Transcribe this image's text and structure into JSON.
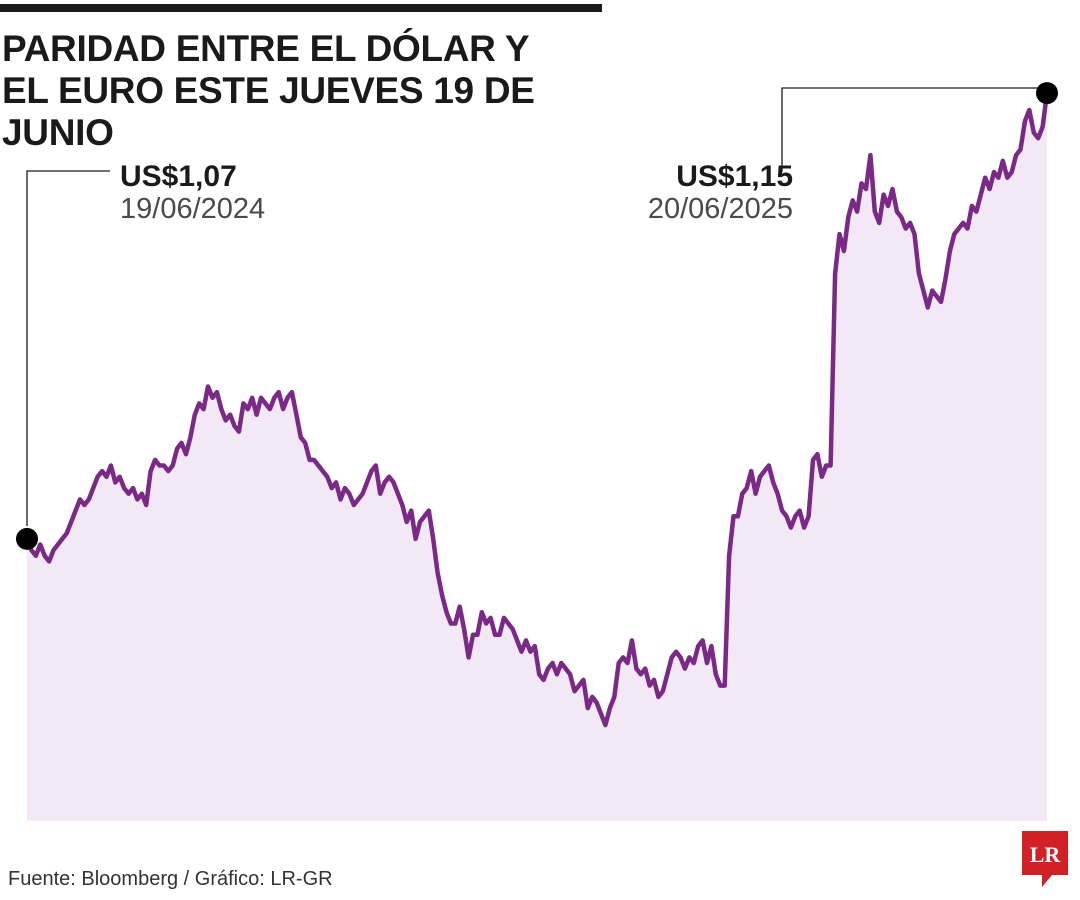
{
  "header": {
    "title_line1": "PARIDAD ENTRE EL DÓLAR Y",
    "title_line2": "EL EURO ESTE JUEVES 19 DE JUNIO"
  },
  "footer": {
    "source": "Fuente: Bloomberg / Gráfico: LR-GR",
    "logo_text": "LR"
  },
  "colors": {
    "line": "#7a2a86",
    "area": "#f3e9f6",
    "text": "#1a1a1a",
    "muted": "#4a4a4a",
    "logo": "#d22027"
  },
  "chart_data": {
    "type": "area",
    "title": "PARIDAD ENTRE EL DÓLAR Y EL EURO ESTE JUEVES 19 DE JUNIO",
    "xlabel": "",
    "ylabel": "",
    "x_range": [
      "19/06/2024",
      "20/06/2025"
    ],
    "ylim": [
      1.02,
      1.16
    ],
    "grid": false,
    "axes_visible": false,
    "annotations": [
      {
        "label": "US$1,07",
        "date": "19/06/2024",
        "value": 1.07,
        "position": "start"
      },
      {
        "label": "US$1,15",
        "date": "20/06/2025",
        "value": 1.15,
        "position": "end"
      }
    ],
    "series": [
      {
        "values": [
          1.07,
          1.068,
          1.067,
          1.069,
          1.067,
          1.066,
          1.068,
          1.069,
          1.07,
          1.071,
          1.073,
          1.075,
          1.077,
          1.076,
          1.077,
          1.079,
          1.081,
          1.082,
          1.081,
          1.083,
          1.08,
          1.081,
          1.079,
          1.078,
          1.079,
          1.077,
          1.078,
          1.076,
          1.082,
          1.084,
          1.083,
          1.083,
          1.082,
          1.083,
          1.086,
          1.087,
          1.085,
          1.088,
          1.092,
          1.094,
          1.093,
          1.097,
          1.095,
          1.096,
          1.093,
          1.091,
          1.092,
          1.09,
          1.089,
          1.094,
          1.093,
          1.095,
          1.092,
          1.095,
          1.094,
          1.093,
          1.095,
          1.096,
          1.093,
          1.095,
          1.096,
          1.092,
          1.088,
          1.087,
          1.084,
          1.084,
          1.083,
          1.082,
          1.081,
          1.079,
          1.08,
          1.077,
          1.079,
          1.078,
          1.076,
          1.077,
          1.078,
          1.08,
          1.082,
          1.083,
          1.078,
          1.08,
          1.081,
          1.08,
          1.078,
          1.076,
          1.073,
          1.075,
          1.07,
          1.073,
          1.074,
          1.075,
          1.07,
          1.064,
          1.06,
          1.057,
          1.055,
          1.055,
          1.058,
          1.054,
          1.049,
          1.053,
          1.053,
          1.057,
          1.055,
          1.056,
          1.053,
          1.053,
          1.056,
          1.055,
          1.054,
          1.052,
          1.05,
          1.052,
          1.05,
          1.051,
          1.046,
          1.045,
          1.047,
          1.048,
          1.046,
          1.048,
          1.047,
          1.046,
          1.043,
          1.044,
          1.045,
          1.04,
          1.042,
          1.041,
          1.039,
          1.037,
          1.04,
          1.042,
          1.048,
          1.049,
          1.048,
          1.052,
          1.047,
          1.046,
          1.047,
          1.044,
          1.045,
          1.042,
          1.043,
          1.046,
          1.049,
          1.05,
          1.049,
          1.047,
          1.049,
          1.048,
          1.051,
          1.052,
          1.048,
          1.051,
          1.046,
          1.044,
          1.044,
          1.067,
          1.074,
          1.074,
          1.078,
          1.079,
          1.082,
          1.078,
          1.081,
          1.082,
          1.083,
          1.08,
          1.078,
          1.075,
          1.074,
          1.072,
          1.074,
          1.075,
          1.072,
          1.074,
          1.084,
          1.085,
          1.081,
          1.083,
          1.083,
          1.117,
          1.124,
          1.121,
          1.127,
          1.13,
          1.128,
          1.133,
          1.132,
          1.138,
          1.128,
          1.126,
          1.131,
          1.129,
          1.132,
          1.128,
          1.127,
          1.125,
          1.126,
          1.124,
          1.117,
          1.114,
          1.111,
          1.114,
          1.113,
          1.112,
          1.116,
          1.121,
          1.124,
          1.125,
          1.126,
          1.125,
          1.129,
          1.128,
          1.131,
          1.134,
          1.132,
          1.135,
          1.134,
          1.137,
          1.134,
          1.135,
          1.138,
          1.139,
          1.144,
          1.146,
          1.142,
          1.141,
          1.143,
          1.149
        ]
      }
    ]
  }
}
